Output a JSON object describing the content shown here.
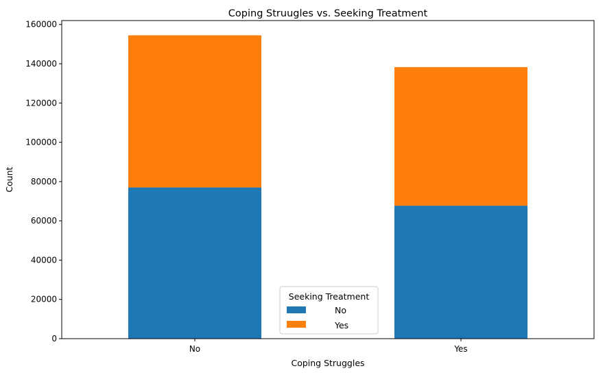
{
  "chart_data": {
    "type": "bar",
    "stacked": true,
    "title": "Coping Struugles vs. Seeking Treatment",
    "xlabel": "Coping Struggles",
    "ylabel": "Count",
    "categories": [
      "No",
      "Yes"
    ],
    "series": [
      {
        "name": "No",
        "values": [
          77000,
          67700
        ],
        "color": "#1f77b4"
      },
      {
        "name": "Yes",
        "values": [
          77500,
          70600
        ],
        "color": "#ff7f0e"
      }
    ],
    "ylim": [
      0,
      162000
    ],
    "yticks": [
      0,
      20000,
      40000,
      60000,
      80000,
      100000,
      120000,
      140000,
      160000
    ],
    "grid": false,
    "legend": {
      "title": "Seeking Treatment",
      "position": "bottom-center"
    }
  }
}
